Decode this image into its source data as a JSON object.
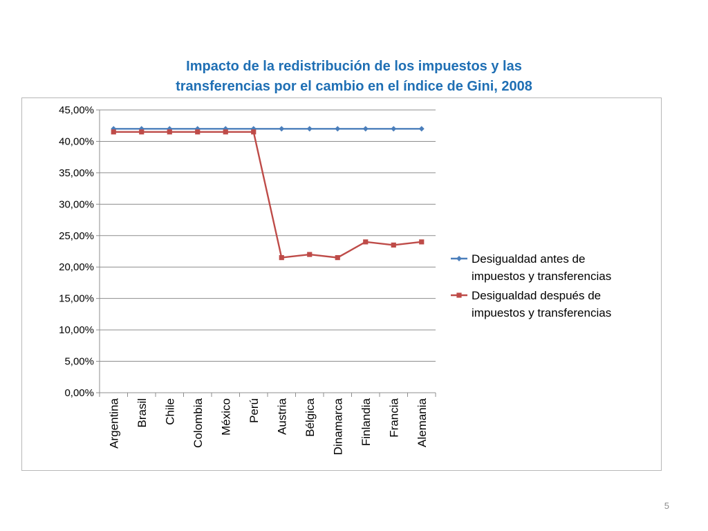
{
  "slide": {
    "title_line1": "Impacto de la redistribución de los impuestos y las",
    "title_line2": "transferencias por el cambio en el índice de Gini, 2008",
    "page_number": "5"
  },
  "chart_data": {
    "type": "line",
    "title": "Impacto de la redistribución de los impuestos y las transferencias por el cambio en el índice de Gini, 2008",
    "xlabel": "",
    "ylabel": "",
    "categories": [
      "Argentina",
      "Brasil",
      "Chile",
      "Colombia",
      "México",
      "Perú",
      "Austria",
      "Bélgica",
      "Dinamarca",
      "Finlandia",
      "Francia",
      "Alemania"
    ],
    "series": [
      {
        "name": "Desigualdad antes de impuestos y transferencias",
        "legend_line1": "Desigualdad antes de",
        "legend_line2": "impuestos y transferencias",
        "color": "#4a7ebb",
        "marker": "diamond",
        "values": [
          42,
          42,
          42,
          42,
          42,
          42,
          42,
          42,
          42,
          42,
          42,
          42
        ]
      },
      {
        "name": "Desigualdad después de impuestos y transferencias",
        "legend_line1": "Desigualdad después de",
        "legend_line2": "impuestos y transferencias",
        "color": "#be4b48",
        "marker": "square",
        "values": [
          41.5,
          41.5,
          41.5,
          41.5,
          41.5,
          41.5,
          21.5,
          22,
          21.5,
          24,
          23.5,
          24
        ]
      }
    ],
    "ylim": [
      0,
      45
    ],
    "yticks": [
      0,
      5,
      10,
      15,
      20,
      25,
      30,
      35,
      40,
      45
    ],
    "ytick_labels": [
      "0,00%",
      "5,00%",
      "10,00%",
      "15,00%",
      "20,00%",
      "25,00%",
      "30,00%",
      "35,00%",
      "40,00%",
      "45,00%"
    ],
    "grid": true,
    "legend_position": "right",
    "gridline_color": "#8c8c8c"
  }
}
